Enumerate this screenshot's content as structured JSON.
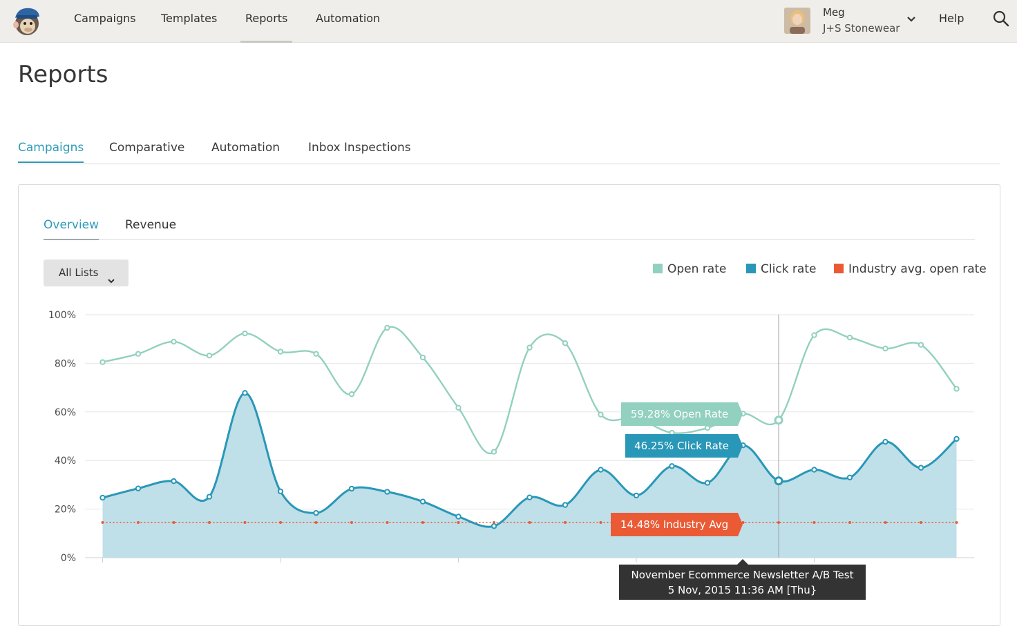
{
  "nav": {
    "items": [
      {
        "label": "Campaigns"
      },
      {
        "label": "Templates"
      },
      {
        "label": "Reports"
      },
      {
        "label": "Automation"
      }
    ],
    "user_name": "Meg",
    "user_org": "J+S Stonewear",
    "help_label": "Help",
    "icons": {
      "logo": "mailchimp-logo",
      "chevron": "chevron-down-icon",
      "search": "search-icon"
    }
  },
  "page": {
    "title": "Reports"
  },
  "tabs": [
    {
      "label": "Campaigns",
      "active": true
    },
    {
      "label": "Comparative"
    },
    {
      "label": "Automation"
    },
    {
      "label": "Inbox Inspections"
    }
  ],
  "panel": {
    "subtabs": [
      {
        "label": "Overview",
        "active": true
      },
      {
        "label": "Revenue"
      }
    ],
    "list_filter": "All Lists"
  },
  "colors": {
    "accent": "#2e9bb8",
    "open_rate": "#92d0bf",
    "click_rate": "#2997b7",
    "click_fill": "#bfdfe9",
    "industry": "#ea5b35",
    "tooltip_bg": "#333333"
  },
  "chart_data": {
    "type": "area",
    "y_unit": "%",
    "ylim": [
      0,
      100
    ],
    "y_ticks": [
      "100%",
      "80%",
      "60%",
      "40%",
      "20%",
      "0%"
    ],
    "grid": true,
    "legend_position": "top-right",
    "x": [
      1,
      2,
      3,
      4,
      5,
      6,
      7,
      8,
      9,
      10,
      11,
      12,
      13,
      14,
      15,
      16,
      17,
      18,
      19,
      20,
      21,
      22,
      23,
      24,
      25
    ],
    "series": [
      {
        "name": "Open rate",
        "type": "line",
        "values": [
          80.5,
          83.9,
          88.9,
          83.2,
          92.3,
          84.8,
          83.9,
          67.3,
          94.6,
          82.4,
          61.7,
          43.6,
          86.5,
          88.3,
          58.9,
          57.5,
          51.4,
          53.4,
          59.28,
          56.6,
          91.6,
          90.6,
          86.1,
          87.6,
          69.5
        ]
      },
      {
        "name": "Click rate",
        "type": "area",
        "values": [
          24.7,
          28.5,
          31.5,
          25.1,
          67.8,
          27.3,
          18.4,
          28.4,
          27.1,
          23.1,
          16.9,
          13.0,
          24.8,
          21.7,
          36.2,
          25.6,
          37.7,
          30.8,
          46.25,
          31.6,
          36.2,
          33.0,
          47.7,
          37.0,
          48.9
        ]
      },
      {
        "name": "Industry avg. open rate",
        "type": "line",
        "style": "dotted",
        "values": [
          14.48,
          14.48,
          14.48,
          14.48,
          14.48,
          14.48,
          14.48,
          14.48,
          14.48,
          14.48,
          14.48,
          14.48,
          14.48,
          14.48,
          14.48,
          14.48,
          14.48,
          14.48,
          14.48,
          14.48,
          14.48,
          14.48,
          14.48,
          14.48,
          14.48
        ]
      }
    ],
    "hover_index": 19,
    "tooltips": {
      "open": "59.28% Open Rate",
      "click": "46.25% Click Rate",
      "industry": "14.48% Industry Avg",
      "campaign_name": "November Ecommerce Newsletter A/B Test",
      "campaign_date": "5 Nov, 2015 11:36 AM [Thu}"
    }
  }
}
